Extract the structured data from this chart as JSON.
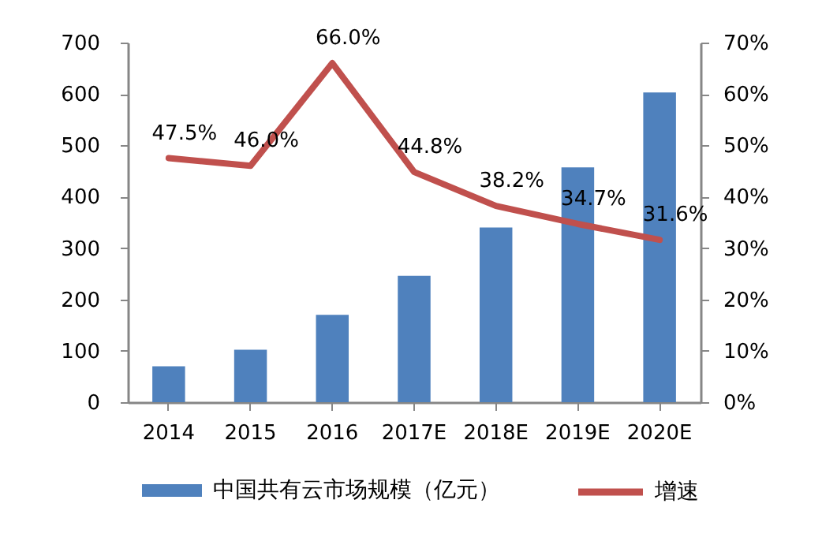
{
  "chart_data": {
    "type": "bar",
    "categories": [
      "2014",
      "2015",
      "2016",
      "2017E",
      "2018E",
      "2019E",
      "2020E"
    ],
    "series": [
      {
        "name": "中国共有云市场规模（亿元）",
        "color": "#4f81bd",
        "values": [
          70,
          102,
          170,
          246,
          340,
          457,
          603
        ]
      },
      {
        "name": "增速",
        "type": "line",
        "axis": "y2",
        "color": "#c0504d",
        "values": [
          47.5,
          46.0,
          66.0,
          44.8,
          38.2,
          34.7,
          31.6
        ],
        "value_labels": [
          "47.5%",
          "46.0%",
          "66.0%",
          "44.8%",
          "38.2%",
          "34.7%",
          "31.6%"
        ]
      }
    ],
    "ylim": [
      0,
      700
    ],
    "yticks": [
      0,
      100,
      200,
      300,
      400,
      500,
      600,
      700
    ],
    "y2lim": [
      0,
      70
    ],
    "y2ticks": [
      {
        "value": 0,
        "label": "0%"
      },
      {
        "value": 10,
        "label": "10%"
      },
      {
        "value": 20,
        "label": "20%"
      },
      {
        "value": 30,
        "label": "30%"
      },
      {
        "value": 40,
        "label": "40%"
      },
      {
        "value": 50,
        "label": "50%"
      },
      {
        "value": 60,
        "label": "60%"
      },
      {
        "value": 70,
        "label": "70%"
      }
    ],
    "grid": false,
    "legend": "bottom",
    "line_style": "solid",
    "marker": "none"
  }
}
